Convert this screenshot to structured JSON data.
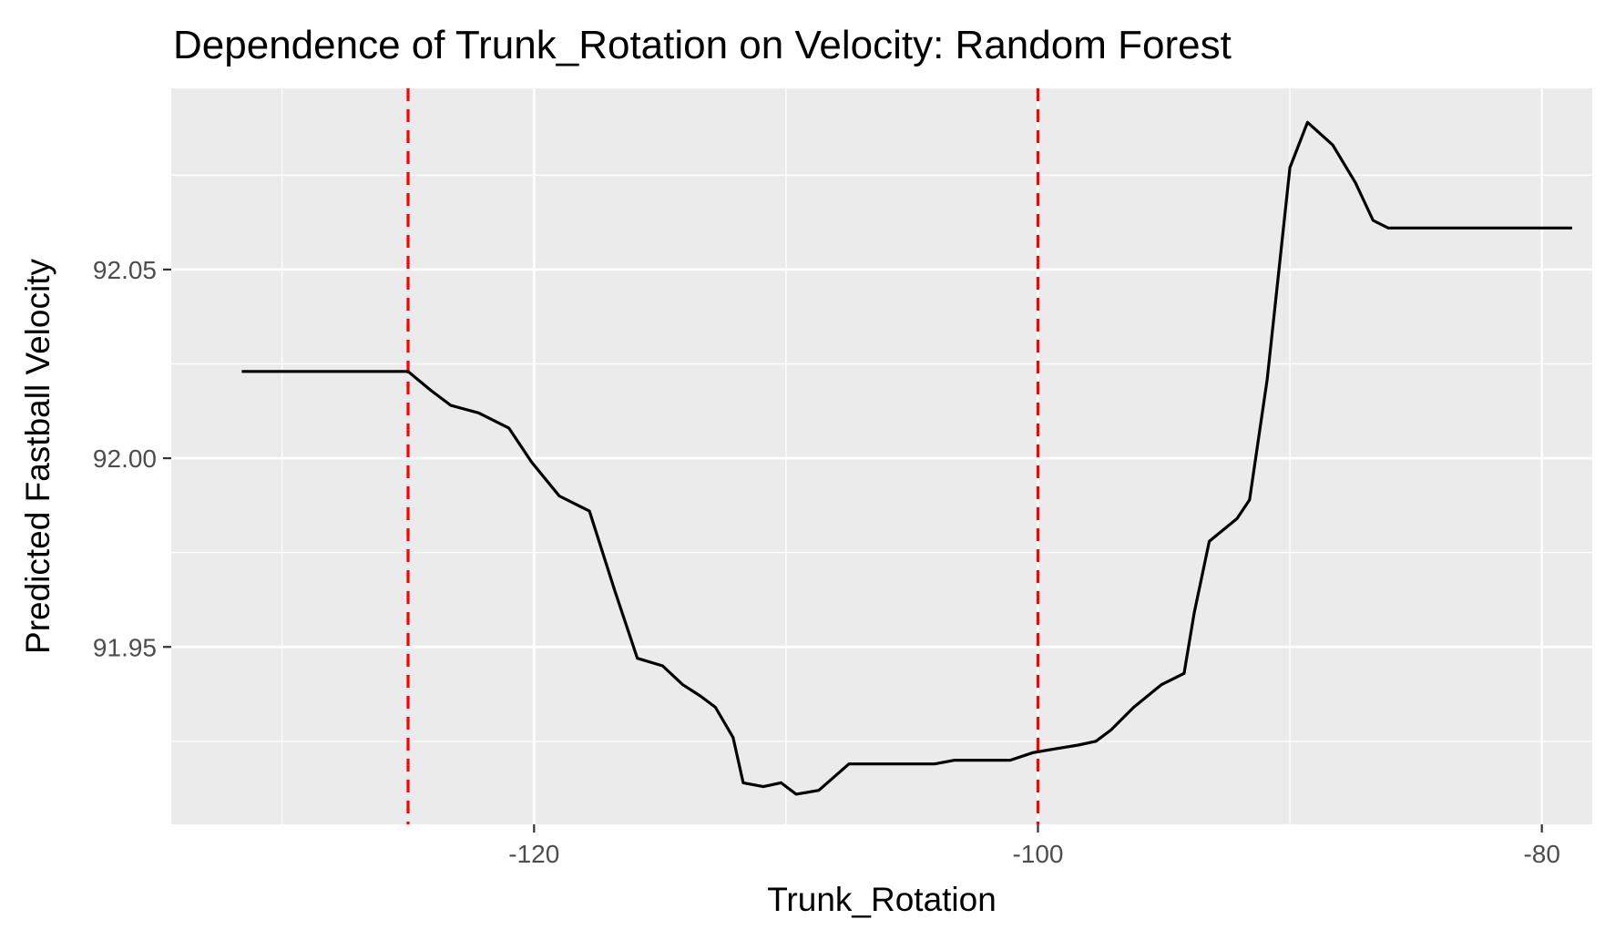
{
  "chart_data": {
    "type": "line",
    "title": "Dependence of Trunk_Rotation on Velocity: Random Forest",
    "xlabel": "Trunk_Rotation",
    "ylabel": "Predicted Fastball Velocity",
    "xlim": [
      -134.4,
      -78.0
    ],
    "ylim": [
      91.903,
      92.098
    ],
    "x_ticks": [
      -120,
      -100,
      -80
    ],
    "x_tick_labels": [
      "-120",
      "-100",
      "-80"
    ],
    "y_ticks": [
      91.95,
      92.0,
      92.05
    ],
    "y_tick_labels": [
      "91.95",
      "92.00",
      "92.05"
    ],
    "grid": true,
    "panel_background": "#ebebeb",
    "grid_color": "#ffffff",
    "line_color": "#000000",
    "reference_line_color": "#ff0000",
    "reference_lines_x": [
      -125,
      -100
    ],
    "series": [
      {
        "x": [
          -131.6,
          -129.3,
          -127.1,
          -126.0,
          -125.0,
          -124.1,
          -123.3,
          -122.2,
          -121.0,
          -120.1,
          -119.0,
          -117.8,
          -116.8,
          -115.9,
          -114.9,
          -114.1,
          -113.4,
          -112.8,
          -112.1,
          -111.7,
          -110.9,
          -110.2,
          -109.6,
          -108.7,
          -107.5,
          -106.6,
          -105.2,
          -104.1,
          -103.3,
          -102.2,
          -101.1,
          -100.2,
          -99.3,
          -98.4,
          -97.7,
          -97.1,
          -96.2,
          -95.1,
          -94.2,
          -93.8,
          -93.2,
          -92.1,
          -91.6,
          -90.9,
          -90.0,
          -89.3,
          -88.3,
          -87.4,
          -86.7,
          -86.1,
          -85.5,
          -85.1,
          -84.4,
          -83.2,
          -82.1,
          -81.2,
          -79.5,
          -79.0,
          -78.8
        ],
        "y": [
          92.023,
          92.023,
          92.023,
          92.023,
          92.023,
          92.018,
          92.014,
          92.012,
          92.008,
          91.999,
          91.99,
          91.986,
          91.965,
          91.947,
          91.945,
          91.94,
          91.937,
          91.934,
          91.926,
          91.914,
          91.913,
          91.914,
          91.911,
          91.912,
          91.919,
          91.919,
          91.919,
          91.919,
          91.92,
          91.92,
          91.92,
          91.922,
          91.923,
          91.924,
          91.925,
          91.928,
          91.934,
          91.94,
          91.943,
          91.959,
          91.978,
          91.984,
          91.989,
          92.021,
          92.077,
          92.089,
          92.083,
          92.073,
          92.063,
          92.061,
          92.061,
          92.061,
          92.061,
          92.061,
          92.061,
          92.061,
          92.061,
          92.061,
          92.061
        ]
      }
    ]
  }
}
